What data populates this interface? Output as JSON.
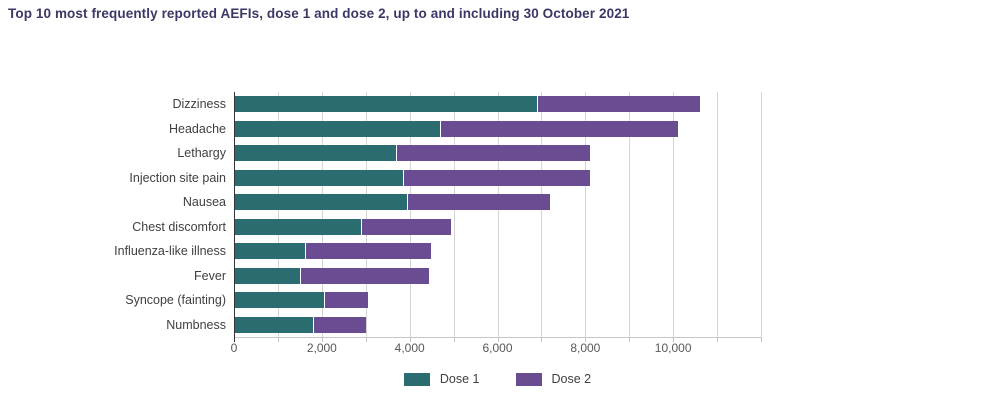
{
  "title": "Top 10 most frequently reported AEFIs, dose 1 and dose 2, up to and including 30 October 2021",
  "colors": {
    "title": "#3b3866",
    "dose1": "#2a6c70",
    "dose2": "#6a4c93",
    "gridline": "#d4d4d4",
    "axis_line": "#c6c6c6",
    "zero_line": "#333333",
    "category_label": "#404040",
    "tick_label": "#595959",
    "legend_label": "#404040",
    "background": "#ffffff"
  },
  "chart_data": {
    "type": "bar",
    "orientation": "horizontal",
    "stacked": true,
    "title": "Top 10 most frequently reported AEFIs, dose 1 and dose 2, up to and including 30 October 2021",
    "categories": [
      "Dizziness",
      "Headache",
      "Lethargy",
      "Injection site pain",
      "Nausea",
      "Chest discomfort",
      "Influenza-like illness",
      "Fever",
      "Syncope (fainting)",
      "Numbness"
    ],
    "series": [
      {
        "name": "Dose 1",
        "color_key": "dose1",
        "values": [
          6900,
          4700,
          3700,
          3850,
          3950,
          2900,
          1620,
          1500,
          2050,
          1800
        ]
      },
      {
        "name": "Dose 2",
        "color_key": "dose2",
        "values": [
          3700,
          5400,
          4400,
          4250,
          3250,
          2050,
          2860,
          2940,
          1000,
          1200
        ]
      }
    ],
    "totals": [
      10600,
      10100,
      8100,
      8100,
      7200,
      4950,
      4480,
      4440,
      3050,
      3000
    ],
    "xlim": [
      0,
      12000
    ],
    "gridline_step": 1000,
    "xlabel": "",
    "ylabel": "",
    "grid": "vertical-minor-every-1000",
    "legend_position": "bottom-center",
    "tick_labels": [
      {
        "v": 0,
        "label": "0"
      },
      {
        "v": 2000,
        "label": "2,000"
      },
      {
        "v": 4000,
        "label": "4,000"
      },
      {
        "v": 6000,
        "label": "6,000"
      },
      {
        "v": 8000,
        "label": "8,000"
      },
      {
        "v": 10000,
        "label": "10,000"
      }
    ]
  }
}
